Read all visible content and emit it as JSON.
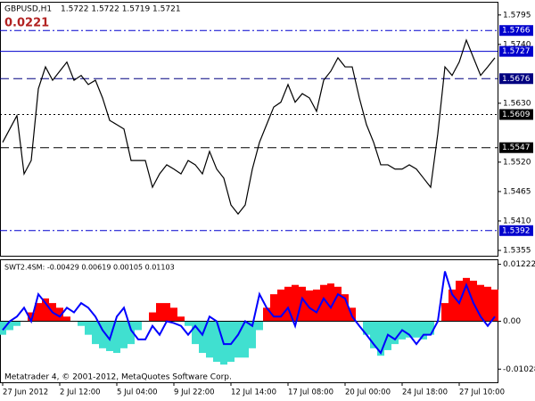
{
  "chart_data": [
    {
      "type": "line",
      "symbol": "GBPUSD,H1",
      "ohlc": "1.5722 1.5722 1.5719 1.5721",
      "spread": "0.0221",
      "color": "#000000",
      "values": [
        1.5557,
        1.5582,
        1.5607,
        1.5498,
        1.5523,
        1.5657,
        1.5698,
        1.5673,
        1.569,
        1.5707,
        1.5673,
        1.5682,
        1.5665,
        1.5673,
        1.564,
        1.5598,
        1.559,
        1.5582,
        1.5523,
        1.5523,
        1.5523,
        1.5473,
        1.5498,
        1.5515,
        1.5507,
        1.5498,
        1.5523,
        1.5515,
        1.5498,
        1.554,
        1.5507,
        1.549,
        1.544,
        1.5423,
        1.544,
        1.5507,
        1.5557,
        1.559,
        1.5623,
        1.5632,
        1.5665,
        1.5632,
        1.5648,
        1.564,
        1.5615,
        1.5673,
        1.569,
        1.5715,
        1.5698,
        1.5698,
        1.564,
        1.559,
        1.5557,
        1.5515,
        1.5515,
        1.5507,
        1.5507,
        1.5515,
        1.5507,
        1.549,
        1.5473,
        1.5573,
        1.5698,
        1.5682,
        1.5707,
        1.5748,
        1.5715,
        1.5682,
        1.5698,
        1.5715
      ],
      "ylim": [
        1.5345,
        1.5818
      ],
      "yticks": [
        1.5795,
        {
          "value": 1.574,
          "label": "1.5740"
        },
        {
          "value": 1.563,
          "label": "1.5630"
        },
        {
          "value": 1.552,
          "label": "1.5520"
        },
        1.5465,
        {
          "value": 1.541,
          "label": "1.5410"
        },
        1.5355
      ],
      "levels": [
        {
          "value": 1.5766,
          "style": "dashdot",
          "color": "#0000cd"
        },
        {
          "value": 1.5727,
          "style": "solid",
          "color": "#0000cd"
        },
        {
          "value": 1.5676,
          "style": "dashed",
          "color": "#000080"
        },
        {
          "value": 1.5609,
          "style": "dotted",
          "color": "#000000"
        },
        {
          "value": 1.5547,
          "style": "dashed",
          "color": "#000000"
        },
        {
          "value": 1.5392,
          "style": "dashdot",
          "color": "#0000cd"
        }
      ]
    },
    {
      "type": "bar",
      "title": "SWT2.4SM: -0.00429 0.00619 0.00105 0.01103",
      "footer": "Metatrader 4, © 2001-2012, MetaQuotes Software Corp.",
      "categories": [
        "27 Jun 2012",
        null,
        null,
        null,
        null,
        null,
        null,
        null,
        "2 Jul 12:00",
        null,
        null,
        null,
        null,
        null,
        null,
        null,
        "5 Jul 04:00",
        null,
        null,
        null,
        null,
        null,
        null,
        null,
        "9 Jul 22:00",
        null,
        null,
        null,
        null,
        null,
        null,
        null,
        "12 Jul 14:00",
        null,
        null,
        null,
        null,
        null,
        null,
        null,
        "17 Jul 08:00",
        null,
        null,
        null,
        null,
        null,
        null,
        null,
        "20 Jul 00:00",
        null,
        null,
        null,
        null,
        null,
        null,
        null,
        "24 Jul 18:00",
        null,
        null,
        null,
        null,
        null,
        null,
        null,
        "27 Jul 10:00",
        null,
        null,
        null,
        null,
        null
      ],
      "values": [
        -0.0029,
        -0.0019,
        -0.001,
        0,
        0.0019,
        0.0039,
        0.0049,
        0.0039,
        0.0029,
        0.001,
        0,
        -0.001,
        -0.0029,
        -0.0049,
        -0.0058,
        -0.0064,
        -0.0068,
        -0.0058,
        -0.0049,
        -0.0019,
        0,
        0.0019,
        0.0039,
        0.0039,
        0.0029,
        0.001,
        -0.001,
        -0.0049,
        -0.0068,
        -0.0078,
        -0.0087,
        -0.0093,
        -0.0087,
        -0.0078,
        -0.0078,
        -0.0058,
        -0.0019,
        0.0029,
        0.0058,
        0.0068,
        0.0074,
        0.0078,
        0.0074,
        0.0066,
        0.0068,
        0.0078,
        0.0081,
        0.0074,
        0.0058,
        0.0029,
        0,
        -0.0029,
        -0.0058,
        -0.0074,
        -0.0062,
        -0.0049,
        -0.0039,
        -0.0035,
        -0.0035,
        -0.0039,
        -0.0029,
        0,
        0.0039,
        0.0068,
        0.0087,
        0.0093,
        0.0087,
        0.0078,
        0.0074,
        0.0068
      ],
      "colors": {
        "positive": "#ff0000",
        "negative": "#40e0d0"
      },
      "line": {
        "color": "#0000ff",
        "values": [
          -0.0019,
          0,
          0.001,
          0.0029,
          0,
          0.0058,
          0.0039,
          0.0019,
          0.001,
          0.0029,
          0.0019,
          0.0039,
          0.0029,
          0.001,
          -0.0019,
          -0.0039,
          0.001,
          0.0029,
          -0.0019,
          -0.0039,
          -0.0039,
          -0.001,
          -0.0029,
          0,
          -0.0004,
          -0.001,
          -0.0029,
          -0.001,
          -0.0029,
          0.001,
          0,
          -0.0049,
          -0.0049,
          -0.0029,
          0,
          -0.001,
          0.0058,
          0.0029,
          0.001,
          0.001,
          0.0029,
          -0.001,
          0.0049,
          0.0029,
          0.0019,
          0.0049,
          0.0029,
          0.0058,
          0.0049,
          0.001,
          -0.001,
          -0.0029,
          -0.0049,
          -0.0068,
          -0.0029,
          -0.0039,
          -0.0019,
          -0.0029,
          -0.0049,
          -0.0029,
          -0.0029,
          0,
          0.0107,
          0.0058,
          0.0039,
          0.0078,
          0.0039,
          0.001,
          -0.001,
          0.001
        ]
      },
      "ylim": [
        -0.0131,
        0.0131
      ],
      "yticks": [
        0.01222,
        {
          "value": 0,
          "label": "0.00"
        },
        -0.01028
      ]
    }
  ]
}
